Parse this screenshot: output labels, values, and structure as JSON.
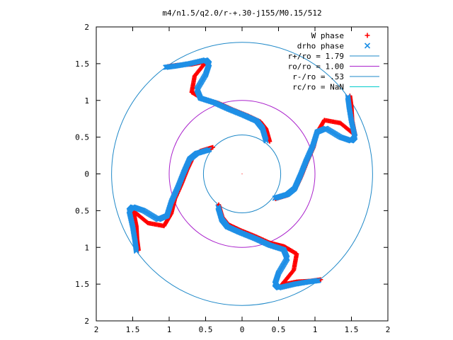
{
  "chart_data": {
    "type": "scatter",
    "title": "m4/n1.5/q2.0/r-+.30-j155/M0.15/512",
    "xlim": [
      -2,
      2
    ],
    "ylim": [
      -2,
      2
    ],
    "xticks": [
      -2,
      -1.5,
      -1,
      -0.5,
      0,
      0.5,
      1,
      1.5,
      2
    ],
    "yticks": [
      -2,
      -1.5,
      -1,
      -0.5,
      0,
      0.5,
      1,
      1.5,
      2
    ],
    "xtick_labels": [
      "2",
      "1.5",
      "1",
      "0.5",
      "0",
      "0.5",
      "1",
      "1.5",
      "2"
    ],
    "ytick_labels": [
      "2",
      "1.5",
      "1",
      "0.5",
      "0",
      "0.5",
      "1",
      "1.5",
      "2"
    ],
    "grid": false,
    "legend_position": "top-right",
    "series": [
      {
        "name": "W phase",
        "marker": "plus",
        "color": "#ff0000",
        "arms": [
          [
            [
              0.35,
              0.43
            ],
            [
              0.3,
              0.6
            ],
            [
              0.22,
              0.7
            ],
            [
              0.05,
              0.78
            ],
            [
              -0.15,
              0.86
            ],
            [
              -0.35,
              0.95
            ],
            [
              -0.55,
              1.0
            ],
            [
              -0.72,
              1.1
            ],
            [
              -0.68,
              1.32
            ],
            [
              -0.55,
              1.48
            ],
            [
              -0.52,
              1.52
            ],
            [
              -0.72,
              1.48
            ],
            [
              -0.9,
              1.47
            ],
            [
              -1.05,
              1.45
            ]
          ],
          [
            [
              0.43,
              -0.35
            ],
            [
              0.6,
              -0.3
            ],
            [
              0.7,
              -0.22
            ],
            [
              0.78,
              -0.05
            ],
            [
              0.86,
              0.15
            ],
            [
              0.95,
              0.35
            ],
            [
              1.0,
              0.55
            ],
            [
              1.1,
              0.72
            ],
            [
              1.32,
              0.68
            ],
            [
              1.48,
              0.55
            ],
            [
              1.52,
              0.52
            ],
            [
              1.48,
              0.72
            ],
            [
              1.47,
              0.9
            ],
            [
              1.45,
              1.05
            ]
          ],
          [
            [
              -0.35,
              -0.43
            ],
            [
              -0.3,
              -0.6
            ],
            [
              -0.22,
              -0.7
            ],
            [
              -0.05,
              -0.78
            ],
            [
              0.15,
              -0.86
            ],
            [
              0.35,
              -0.95
            ],
            [
              0.55,
              -1.0
            ],
            [
              0.72,
              -1.1
            ],
            [
              0.68,
              -1.32
            ],
            [
              0.55,
              -1.48
            ],
            [
              0.52,
              -1.52
            ],
            [
              0.72,
              -1.48
            ],
            [
              0.9,
              -1.47
            ],
            [
              1.05,
              -1.45
            ]
          ],
          [
            [
              -0.43,
              0.35
            ],
            [
              -0.6,
              0.3
            ],
            [
              -0.7,
              0.22
            ],
            [
              -0.78,
              0.05
            ],
            [
              -0.86,
              -0.15
            ],
            [
              -0.95,
              -0.35
            ],
            [
              -1.0,
              -0.55
            ],
            [
              -1.1,
              -0.72
            ],
            [
              -1.32,
              -0.68
            ],
            [
              -1.48,
              -0.55
            ],
            [
              -1.52,
              -0.52
            ],
            [
              -1.48,
              -0.72
            ],
            [
              -1.47,
              -0.9
            ],
            [
              -1.45,
              -1.05
            ]
          ]
        ]
      },
      {
        "name": "drho phase",
        "marker": "cross",
        "color": "#1e8fe6",
        "arms": [
          [
            [
              0.33,
              0.45
            ],
            [
              0.28,
              0.62
            ],
            [
              0.2,
              0.72
            ],
            [
              0.02,
              0.8
            ],
            [
              -0.18,
              0.88
            ],
            [
              -0.38,
              0.97
            ],
            [
              -0.57,
              1.03
            ],
            [
              -0.62,
              1.15
            ],
            [
              -0.5,
              1.35
            ],
            [
              -0.45,
              1.5
            ],
            [
              -0.5,
              1.55
            ],
            [
              -0.72,
              1.5
            ],
            [
              -0.9,
              1.47
            ],
            [
              -1.05,
              1.45
            ]
          ],
          [
            [
              0.45,
              -0.33
            ],
            [
              0.62,
              -0.28
            ],
            [
              0.72,
              -0.2
            ],
            [
              0.8,
              -0.02
            ],
            [
              0.88,
              0.18
            ],
            [
              0.97,
              0.38
            ],
            [
              1.03,
              0.57
            ],
            [
              1.15,
              0.62
            ],
            [
              1.35,
              0.5
            ],
            [
              1.5,
              0.45
            ],
            [
              1.55,
              0.5
            ],
            [
              1.5,
              0.72
            ],
            [
              1.47,
              0.9
            ],
            [
              1.45,
              1.05
            ]
          ],
          [
            [
              -0.33,
              -0.45
            ],
            [
              -0.28,
              -0.62
            ],
            [
              -0.2,
              -0.72
            ],
            [
              -0.02,
              -0.8
            ],
            [
              0.18,
              -0.88
            ],
            [
              0.38,
              -0.97
            ],
            [
              0.57,
              -1.03
            ],
            [
              0.62,
              -1.15
            ],
            [
              0.5,
              -1.35
            ],
            [
              0.45,
              -1.5
            ],
            [
              0.5,
              -1.55
            ],
            [
              0.72,
              -1.5
            ],
            [
              0.9,
              -1.47
            ],
            [
              1.05,
              -1.45
            ]
          ],
          [
            [
              -0.45,
              0.33
            ],
            [
              -0.62,
              0.28
            ],
            [
              -0.72,
              0.2
            ],
            [
              -0.8,
              0.02
            ],
            [
              -0.88,
              -0.18
            ],
            [
              -0.97,
              -0.38
            ],
            [
              -1.03,
              -0.57
            ],
            [
              -1.15,
              -0.62
            ],
            [
              -1.35,
              -0.5
            ],
            [
              -1.5,
              -0.45
            ],
            [
              -1.55,
              -0.5
            ],
            [
              -1.5,
              -0.72
            ],
            [
              -1.47,
              -0.9
            ],
            [
              -1.45,
              -1.05
            ]
          ]
        ]
      },
      {
        "name": "r+/ro = 1.79",
        "type": "circle",
        "radius": 1.79,
        "color": "#1e88c8"
      },
      {
        "name": "ro/ro = 1.00",
        "type": "circle",
        "radius": 1.0,
        "color": "#aa22cc"
      },
      {
        "name": "r-/ro = .53",
        "type": "circle",
        "radius": 0.53,
        "color": "#1e88c8"
      },
      {
        "name": "rc/ro = NaN",
        "type": "circle",
        "radius": null,
        "color": "#00cccc"
      }
    ]
  }
}
